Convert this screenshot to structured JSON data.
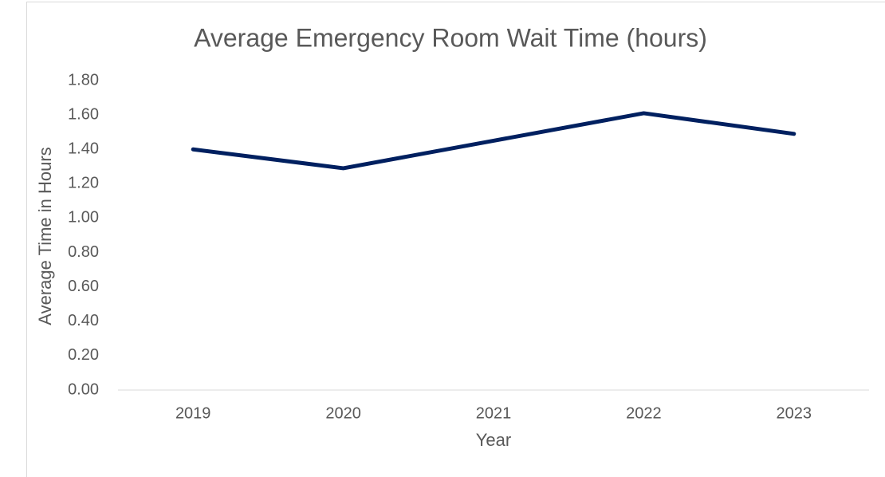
{
  "chart_data": {
    "type": "line",
    "title": "Average Emergency Room Wait Time (hours)",
    "x_label": "Year",
    "y_label": "Average Time in Hours",
    "categories": [
      "2019",
      "2020",
      "2021",
      "2022",
      "2023"
    ],
    "series": [
      {
        "name": "Average Time in Hours",
        "color": "#002060",
        "values": [
          1.4,
          1.29,
          1.45,
          1.61,
          1.49
        ]
      }
    ],
    "ylim": [
      0,
      1.8
    ],
    "yticks": [
      {
        "value": 0,
        "label": "0.00"
      },
      {
        "value": 0.2,
        "label": "0.20"
      },
      {
        "value": 0.4,
        "label": "0.40"
      },
      {
        "value": 0.6,
        "label": "0.60"
      },
      {
        "value": 0.8,
        "label": "0.80"
      },
      {
        "value": 1,
        "label": "1.00"
      },
      {
        "value": 1.2,
        "label": "1.20"
      },
      {
        "value": 1.4,
        "label": "1.40"
      },
      {
        "value": 1.6,
        "label": "1.60"
      },
      {
        "value": 1.8,
        "label": "1.80"
      }
    ],
    "grid": false
  }
}
